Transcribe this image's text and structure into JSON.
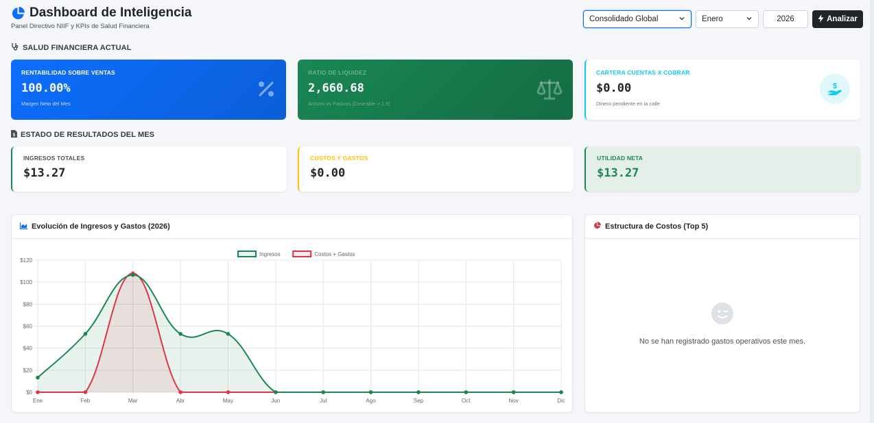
{
  "header": {
    "title": "Dashboard de Inteligencia",
    "subtitle": "Panel Directivo NIIF y KPIs de Salud Financiera",
    "entity_select": "Consolidado Global",
    "month_select": "Enero",
    "year_value": "2026",
    "analyze_label": "Analizar"
  },
  "colors": {
    "primary": "#0d6efd",
    "success": "#198754",
    "info": "#0dcaf0",
    "warning": "#ffc107",
    "danger": "#dc3545",
    "dark": "#212529"
  },
  "health": {
    "section_title": "SALUD FINANCIERA ACTUAL",
    "profitability": {
      "label": "RENTABILIDAD SOBRE VENTAS",
      "value": "100.00%",
      "sub": "Margen Neto del Mes",
      "icon": "percent-icon"
    },
    "liquidity": {
      "label": "RATIO DE LIQUIDEZ",
      "value": "2,660.68",
      "sub": "Activos vs Pasivos (Deseable > 1.5)",
      "icon": "scale-icon"
    },
    "receivables": {
      "label": "CARTERA CUENTAS X COBRAR",
      "value": "$0.00",
      "sub": "Dinero pendiente en la calle",
      "icon": "hand-holding-dollar-icon"
    }
  },
  "results": {
    "section_title": "ESTADO DE RESULTADOS DEL MES",
    "income": {
      "label": "INGRESOS TOTALES",
      "value": "$13.27"
    },
    "costs": {
      "label": "COSTOS Y GASTOS",
      "value": "$0.00"
    },
    "net": {
      "label": "UTILIDAD NETA",
      "value": "$13.27"
    }
  },
  "evolution_card": {
    "title": "Evolución de Ingresos y Gastos (2026)",
    "icon": "area-chart-icon"
  },
  "cost_card": {
    "title": "Estructura de Costos (Top 5)",
    "icon": "pie-chart-icon",
    "empty_icon": "wink-face-icon",
    "empty_text": "No se han registrado gastos operativos este mes."
  },
  "chart_data": {
    "type": "line",
    "categories": [
      "Ene",
      "Feb",
      "Mar",
      "Abr",
      "May",
      "Jun",
      "Jul",
      "Ago",
      "Sep",
      "Oct",
      "Nov",
      "Dic"
    ],
    "series": [
      {
        "name": "Ingresos",
        "color": "#198754",
        "fill": true,
        "values": [
          13.27,
          53,
          106.5,
          53,
          53,
          0,
          0,
          0,
          0,
          0,
          0,
          0
        ]
      },
      {
        "name": "Costos + Gastos",
        "color": "#dc3545",
        "fill": true,
        "values": [
          0,
          0,
          108,
          0,
          0,
          0,
          0,
          0,
          0,
          0,
          0,
          0
        ]
      }
    ],
    "ylim": [
      0,
      120
    ],
    "yticks": [
      "$0",
      "$20",
      "$40",
      "$60",
      "$80",
      "$100",
      "$120"
    ],
    "grid": true,
    "legend": "top-center",
    "smooth": true
  }
}
